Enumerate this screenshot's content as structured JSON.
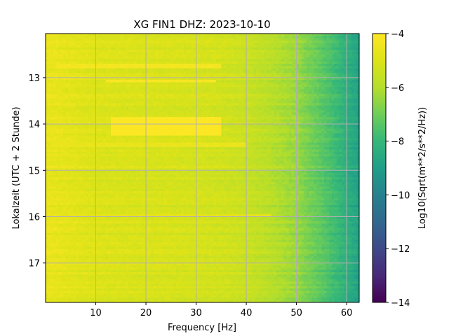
{
  "chart_data": {
    "type": "heatmap",
    "title": "XG FIN1  DHZ: 2023-10-10",
    "xlabel": "Frequency [Hz]",
    "ylabel": "Lokalzeit (UTC + 2 Stunde)",
    "xlim": [
      0,
      62.5
    ],
    "ylim": [
      12.05,
      17.85
    ],
    "y_inverted": true,
    "xticks": [
      10,
      20,
      30,
      40,
      50,
      60
    ],
    "yticks": [
      13,
      14,
      15,
      16,
      17
    ],
    "grid": true,
    "colormap": "viridis",
    "colorbar": {
      "label": "Log10(Sqrt(m**2/s**2/Hz))",
      "range": [
        -14,
        -4
      ],
      "ticks": [
        -4,
        -6,
        -8,
        -10,
        -12,
        -14
      ]
    },
    "freq_profile": {
      "frequency": [
        0,
        5,
        10,
        15,
        20,
        25,
        30,
        35,
        40,
        45,
        50,
        52,
        55,
        58,
        60,
        62.5
      ],
      "log10_amplitude": [
        -4.6,
        -4.8,
        -5.0,
        -5.05,
        -5.1,
        -5.15,
        -5.2,
        -5.3,
        -5.5,
        -5.9,
        -6.4,
        -6.8,
        -7.3,
        -7.9,
        -8.3,
        -8.8
      ]
    },
    "strong_bands": [
      {
        "time_start": 12.68,
        "time_end": 12.82,
        "freq_start": 2,
        "freq_end": 35,
        "log10_amplitude": -4.3
      },
      {
        "time_start": 13.03,
        "time_end": 13.08,
        "freq_start": 12,
        "freq_end": 34,
        "log10_amplitude": -4.1
      },
      {
        "time_start": 13.86,
        "time_end": 14.25,
        "freq_start": 13,
        "freq_end": 35,
        "log10_amplitude": -4.0
      },
      {
        "time_start": 14.42,
        "time_end": 14.48,
        "freq_start": 1,
        "freq_end": 40,
        "log10_amplitude": -4.6
      },
      {
        "time_start": 15.93,
        "time_end": 15.98,
        "freq_start": 5,
        "freq_end": 45,
        "log10_amplitude": -4.7
      }
    ]
  }
}
